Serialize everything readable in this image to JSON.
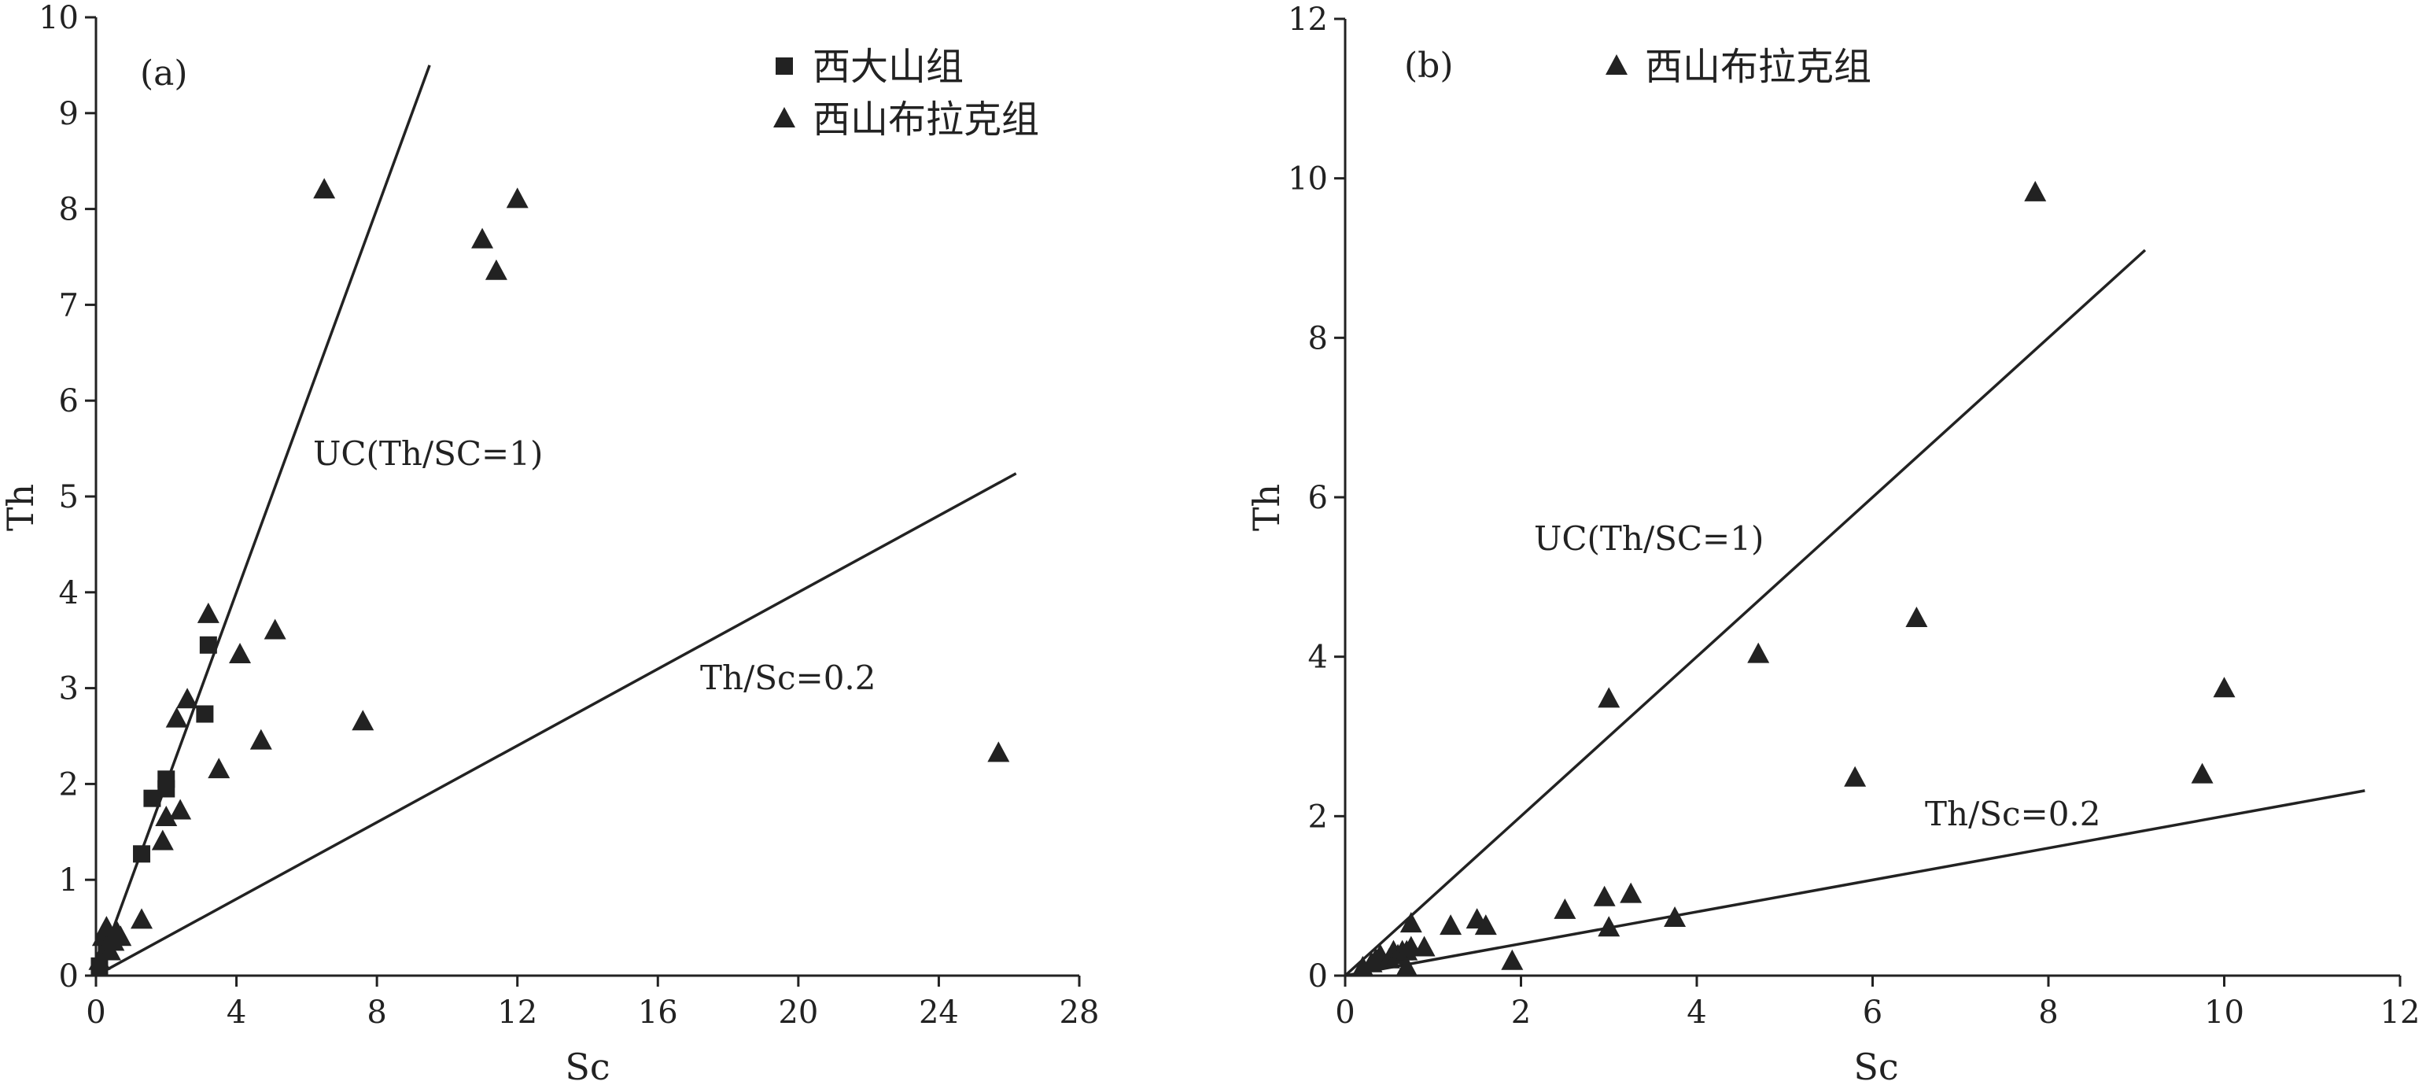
{
  "chart_data": [
    {
      "type": "scatter",
      "panel_label": "(a)",
      "xlabel": "Sc",
      "ylabel": "Th",
      "xlim": [
        0,
        28
      ],
      "ylim": [
        0,
        10
      ],
      "xticks": [
        "0",
        "4",
        "8",
        "12",
        "16",
        "20",
        "24",
        "28"
      ],
      "yticks": [
        "0",
        "1",
        "2",
        "3",
        "4",
        "5",
        "6",
        "7",
        "8",
        "9",
        "10"
      ],
      "grid": false,
      "legend_position": "top-right",
      "reference_lines": [
        {
          "label": "UC(Th/SC=1)",
          "slope": 1,
          "x_end": 9.5
        },
        {
          "label": "Th/Sc=0.2",
          "slope": 0.2,
          "x_end": 26.2
        }
      ],
      "series": [
        {
          "name": "西大山组",
          "marker": "square",
          "points": [
            [
              0.1,
              0.1
            ],
            [
              0.3,
              0.3
            ],
            [
              1.3,
              1.27
            ],
            [
              1.6,
              1.85
            ],
            [
              2.0,
              2.05
            ],
            [
              2.0,
              1.95
            ],
            [
              3.1,
              2.73
            ],
            [
              3.2,
              3.45
            ]
          ]
        },
        {
          "name": "西山布拉克组",
          "marker": "triangle",
          "points": [
            [
              0.1,
              0.15
            ],
            [
              0.2,
              0.4
            ],
            [
              0.3,
              0.3
            ],
            [
              0.3,
              0.5
            ],
            [
              0.4,
              0.25
            ],
            [
              0.5,
              0.35
            ],
            [
              0.6,
              0.45
            ],
            [
              0.7,
              0.4
            ],
            [
              1.3,
              0.58
            ],
            [
              1.9,
              1.4
            ],
            [
              2.0,
              1.65
            ],
            [
              2.3,
              2.68
            ],
            [
              2.4,
              1.72
            ],
            [
              2.6,
              2.88
            ],
            [
              3.2,
              3.77
            ],
            [
              3.5,
              2.15
            ],
            [
              4.1,
              3.35
            ],
            [
              4.7,
              2.45
            ],
            [
              5.1,
              3.6
            ],
            [
              6.5,
              8.2
            ],
            [
              7.6,
              2.65
            ],
            [
              11.0,
              7.68
            ],
            [
              11.4,
              7.35
            ],
            [
              12.0,
              8.1
            ],
            [
              25.7,
              2.32
            ]
          ]
        }
      ]
    },
    {
      "type": "scatter",
      "panel_label": "(b)",
      "xlabel": "Sc",
      "ylabel": "Th",
      "xlim": [
        0,
        12
      ],
      "ylim": [
        0,
        12
      ],
      "xticks": [
        "0",
        "2",
        "4",
        "6",
        "8",
        "10",
        "12"
      ],
      "yticks": [
        "0",
        "2",
        "4",
        "6",
        "8",
        "10",
        "12"
      ],
      "grid": false,
      "legend_position": "top-left",
      "reference_lines": [
        {
          "label": "UC(Th/SC=1)",
          "slope": 1,
          "x_end": 9.1
        },
        {
          "label": "Th/Sc=0.2",
          "slope": 0.2,
          "x_end": 11.6
        }
      ],
      "series": [
        {
          "name": "西山布拉克组",
          "marker": "triangle",
          "points": [
            [
              0.2,
              0.1
            ],
            [
              0.3,
              0.15
            ],
            [
              0.35,
              0.2
            ],
            [
              0.4,
              0.25
            ],
            [
              0.5,
              0.2
            ],
            [
              0.55,
              0.3
            ],
            [
              0.6,
              0.25
            ],
            [
              0.65,
              0.3
            ],
            [
              0.7,
              0.3
            ],
            [
              0.75,
              0.35
            ],
            [
              0.75,
              0.65
            ],
            [
              0.7,
              0.1
            ],
            [
              0.9,
              0.35
            ],
            [
              1.2,
              0.62
            ],
            [
              1.5,
              0.7
            ],
            [
              1.6,
              0.62
            ],
            [
              1.9,
              0.18
            ],
            [
              2.5,
              0.82
            ],
            [
              2.95,
              0.98
            ],
            [
              3.0,
              0.6
            ],
            [
              3.0,
              3.47
            ],
            [
              3.25,
              1.02
            ],
            [
              3.75,
              0.72
            ],
            [
              4.7,
              4.03
            ],
            [
              5.8,
              2.48
            ],
            [
              6.5,
              4.48
            ],
            [
              7.85,
              9.82
            ],
            [
              9.75,
              2.52
            ],
            [
              10.0,
              3.6
            ]
          ]
        }
      ]
    }
  ]
}
